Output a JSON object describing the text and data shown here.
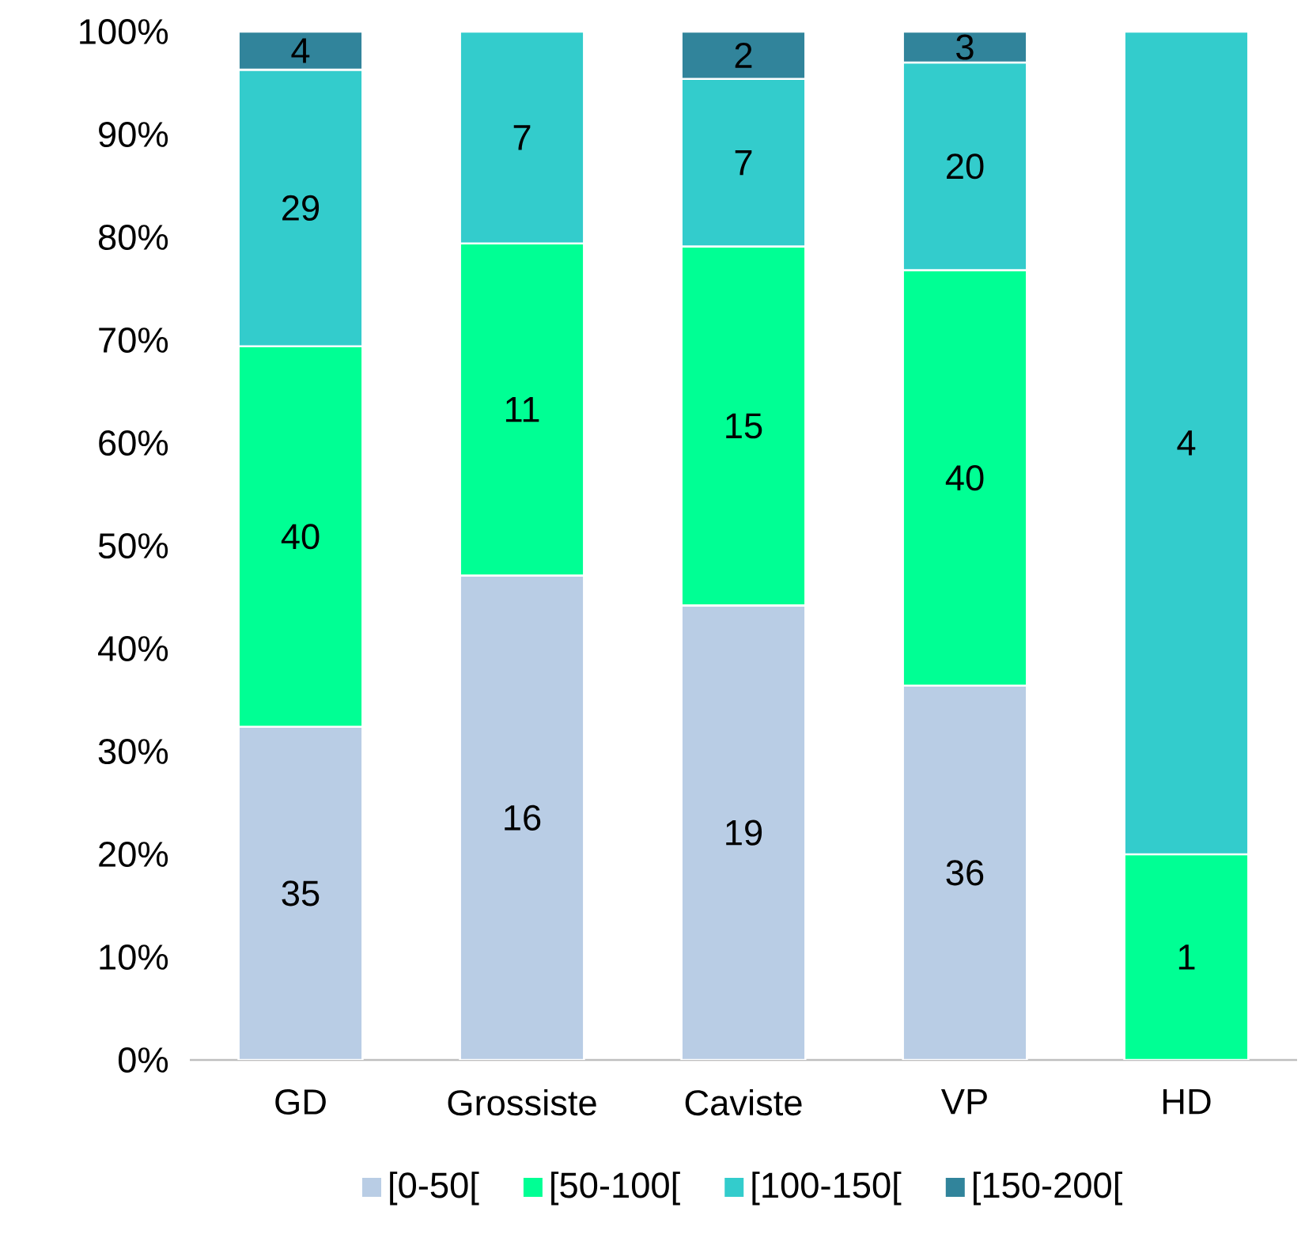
{
  "chart_data": {
    "type": "bar",
    "stacked": true,
    "categories": [
      "GD",
      "Grossiste",
      "Caviste",
      "VP",
      "HD"
    ],
    "ylim": [
      0,
      100
    ],
    "yticks": [
      {
        "value": 0,
        "label": "0%"
      },
      {
        "value": 10,
        "label": "10%"
      },
      {
        "value": 20,
        "label": "20%"
      },
      {
        "value": 30,
        "label": "30%"
      },
      {
        "value": 40,
        "label": "40%"
      },
      {
        "value": 50,
        "label": "50%"
      },
      {
        "value": 60,
        "label": "60%"
      },
      {
        "value": 70,
        "label": "70%"
      },
      {
        "value": 80,
        "label": "80%"
      },
      {
        "value": 90,
        "label": "90%"
      },
      {
        "value": 100,
        "label": "100%"
      }
    ],
    "legend": "bottom",
    "series": [
      {
        "name": "[0-50[",
        "color": "#b9cde5",
        "values": [
          32.4,
          47.1,
          44.2,
          36.4,
          null
        ]
      },
      {
        "name": "[50-100[",
        "color": "#00ff94",
        "values": [
          37.0,
          32.3,
          34.9,
          40.4,
          20
        ]
      },
      {
        "name": "[100-150[",
        "color": "#33cccc",
        "values": [
          26.9,
          20.6,
          16.3,
          20.2,
          80
        ]
      },
      {
        "name": "[150-200[",
        "color": "#31849b",
        "values": [
          3.7,
          null,
          4.6,
          3.0,
          null
        ]
      }
    ],
    "annotations": [
      "35",
      "40",
      "29",
      "4",
      "16",
      "11",
      "7",
      "19",
      "15",
      "7",
      "2",
      "36",
      "40",
      "20",
      "3",
      "1",
      "4"
    ]
  }
}
